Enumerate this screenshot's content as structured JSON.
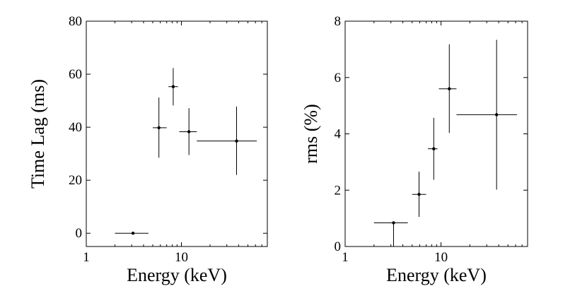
{
  "chart_data": [
    {
      "type": "scatter",
      "title": "",
      "xlabel": "Energy (keV)",
      "ylabel": "Time Lag (ms)",
      "xscale": "log",
      "xlim": [
        1,
        80
      ],
      "ylim": [
        -5,
        80
      ],
      "xticks": [
        1,
        10
      ],
      "xtick_labels": [
        "1",
        "10"
      ],
      "yticks": [
        0,
        20,
        40,
        60,
        80
      ],
      "ytick_labels": [
        "0",
        "20",
        "40",
        "60",
        "80"
      ],
      "points": [
        {
          "x": 3.1,
          "x_low": 2.0,
          "x_high": 4.5,
          "y": 0,
          "y_low": 0,
          "y_high": 0
        },
        {
          "x": 5.8,
          "x_low": 5.0,
          "x_high": 7.0,
          "y": 39.8,
          "y_low": 28.5,
          "y_high": 51.2
        },
        {
          "x": 8.2,
          "x_low": 7.3,
          "x_high": 9.2,
          "y": 55.3,
          "y_low": 48.2,
          "y_high": 62.3
        },
        {
          "x": 12.0,
          "x_low": 9.5,
          "x_high": 14.5,
          "y": 38.3,
          "y_low": 29.5,
          "y_high": 47.2
        },
        {
          "x": 38.0,
          "x_low": 14.5,
          "x_high": 62.0,
          "y": 34.8,
          "y_low": 22.0,
          "y_high": 47.8
        }
      ]
    },
    {
      "type": "scatter",
      "title": "",
      "xlabel": "Energy (keV)",
      "ylabel": "rms (%)",
      "xscale": "log",
      "xlim": [
        1,
        80
      ],
      "ylim": [
        0,
        8
      ],
      "xticks": [
        1,
        10
      ],
      "xtick_labels": [
        "1",
        "10"
      ],
      "yticks": [
        0,
        2,
        4,
        6,
        8
      ],
      "ytick_labels": [
        "0",
        "2",
        "4",
        "6",
        "8"
      ],
      "points": [
        {
          "x": 3.2,
          "x_low": 2.0,
          "x_high": 4.5,
          "y": 0.84,
          "y_low": 0,
          "y_high": 0.84
        },
        {
          "x": 5.9,
          "x_low": 5.0,
          "x_high": 7.0,
          "y": 1.85,
          "y_low": 1.05,
          "y_high": 2.66
        },
        {
          "x": 8.4,
          "x_low": 7.3,
          "x_high": 9.2,
          "y": 3.47,
          "y_low": 2.37,
          "y_high": 4.57
        },
        {
          "x": 12.2,
          "x_low": 9.5,
          "x_high": 14.5,
          "y": 5.6,
          "y_low": 4.03,
          "y_high": 7.18
        },
        {
          "x": 38.0,
          "x_low": 14.5,
          "x_high": 62.0,
          "y": 4.68,
          "y_low": 2.02,
          "y_high": 7.34
        }
      ]
    }
  ]
}
